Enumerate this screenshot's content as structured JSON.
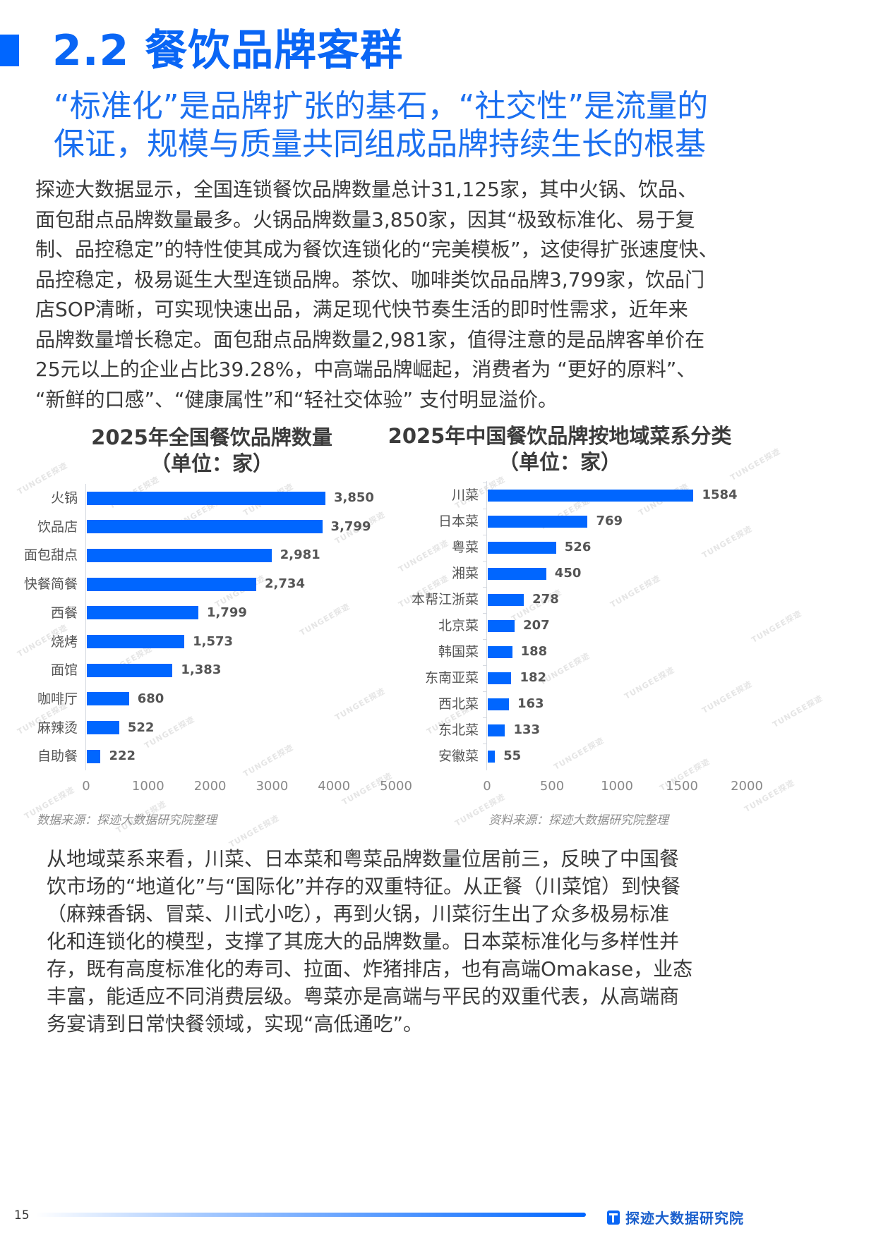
{
  "header": {
    "section_title": "2.2 餐饮品牌客群",
    "subtitle_lines": [
      "“标准化”是品牌扩张的基石，“社交性”是流量的",
      "保证，规模与质量共同组成品牌持续生长的根基"
    ]
  },
  "paragraph1": {
    "lines": [
      "探迹大数据显示，全国连锁餐饮品牌数量总计31,125家，其中火锅、饮品、",
      "面包甜点品牌数量最多。火锅品牌数量3,850家，因其“极致标准化、易于复",
      "制、品控稳定”的特性使其成为餐饮连锁化的“完美模板”，这使得扩张速度快、",
      "品控稳定，极易诞生大型连锁品牌。茶饮、咖啡类饮品品牌3,799家，饮品门",
      "店SOP清晰，可实现快速出品，满足现代快节奏生活的即时性需求，近年来",
      "品牌数量增长稳定。面包甜点品牌数量2,981家，值得注意的是品牌客单价在",
      "25元以上的企业占比39.28%，中高端品牌崛起，消费者为 “更好的原料”、",
      "“新鲜的口感”、“健康属性”和“轻社交体验” 支付明显溢价。"
    ]
  },
  "chart_data": [
    {
      "type": "bar",
      "orientation": "horizontal",
      "title": "2025年全国餐饮品牌数量",
      "subtitle": "（单位：家）",
      "categories": [
        "火锅",
        "饮品店",
        "面包甜点",
        "快餐简餐",
        "西餐",
        "烧烤",
        "面馆",
        "咖啡厅",
        "麻辣烫",
        "自助餐"
      ],
      "values": [
        3850,
        3799,
        2981,
        2734,
        1799,
        1573,
        1383,
        680,
        522,
        222
      ],
      "value_labels": [
        "3,850",
        "3,799",
        "2,981",
        "2,734",
        "1,799",
        "1,573",
        "1,383",
        "680",
        "522",
        "222"
      ],
      "xlim": [
        0,
        5000
      ],
      "xticks": [
        "0",
        "1000",
        "2000",
        "3000",
        "4000",
        "5000"
      ],
      "xlabel": "",
      "ylabel": "",
      "grid": false,
      "legend": null,
      "bar_color": "#0066ff",
      "source": "数据来源：探迹大数据研究院整理"
    },
    {
      "type": "bar",
      "orientation": "horizontal",
      "title": "2025年中国餐饮品牌按地域菜系分类",
      "subtitle": "（单位：家）",
      "categories": [
        "川菜",
        "日本菜",
        "粤菜",
        "湘菜",
        "本帮江浙菜",
        "北京菜",
        "韩国菜",
        "东南亚菜",
        "西北菜",
        "东北菜",
        "安徽菜"
      ],
      "values": [
        1584,
        769,
        526,
        450,
        278,
        207,
        188,
        182,
        163,
        133,
        55
      ],
      "value_labels": [
        "1584",
        "769",
        "526",
        "450",
        "278",
        "207",
        "188",
        "182",
        "163",
        "133",
        "55"
      ],
      "xlim": [
        0,
        2000
      ],
      "xticks": [
        "0",
        "500",
        "1000",
        "1500",
        "2000"
      ],
      "xlabel": "",
      "ylabel": "",
      "grid": false,
      "legend": null,
      "bar_color": "#0066ff",
      "source": "资料来源：探迹大数据研究院整理"
    }
  ],
  "watermark_text": "TUNGEE探迹",
  "paragraph2": {
    "lines": [
      "从地域菜系来看，川菜、日本菜和粤菜品牌数量位居前三，反映了中国餐",
      "饮市场的“地道化”与“国际化”并存的双重特征。从正餐（川菜馆）到快餐",
      "（麻辣香锅、冒菜、川式小吃），再到火锅，川菜衍生出了众多极易标准",
      "化和连锁化的模型，支撑了其庞大的品牌数量。日本菜标准化与多样性并",
      "存，既有高度标准化的寿司、拉面、炸猪排店，也有高端Omakase，业态",
      "丰富，能适应不同消费层级。粤菜亦是高端与平民的双重代表，从高端商",
      "务宴请到日常快餐领域，实现“高低通吃”。"
    ]
  },
  "footer": {
    "page_number": "15",
    "brand": "探迹大数据研究院",
    "accent_color": "#0066ff"
  }
}
